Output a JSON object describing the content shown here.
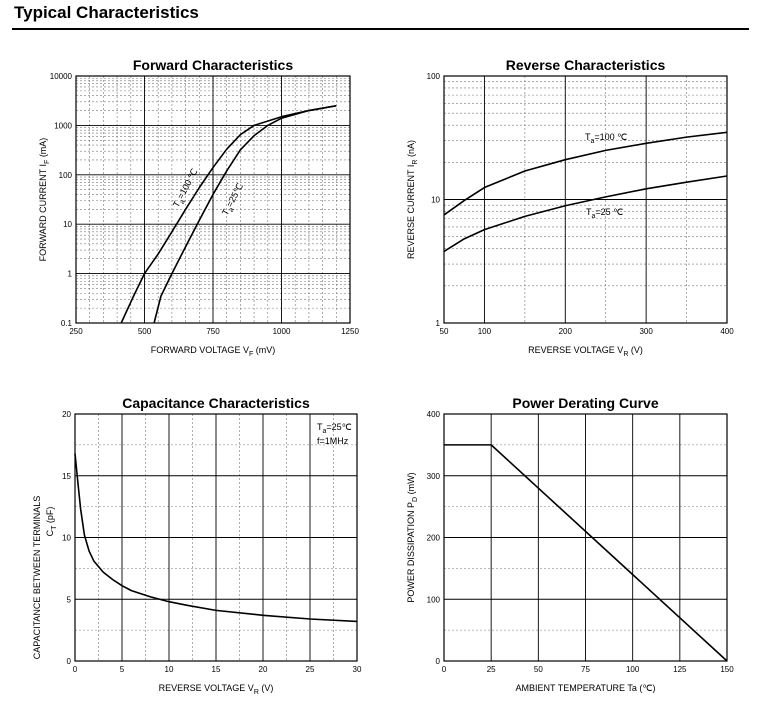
{
  "page": {
    "title": "Typical Characteristics"
  },
  "chart_data": [
    {
      "id": "forward",
      "type": "line",
      "title": "Forward    Characteristics",
      "xlabel": "FORWARD VOLTAGE",
      "xlabel_sub": "F",
      "xlabel_unit": "(mV)",
      "ylabel": "FORWARD CURRENT",
      "ylabel_sub": "F",
      "ylabel_unit": "(mA)",
      "ylabel_sym": "I",
      "xlabel_sym": "V",
      "xscale": "linear",
      "yscale": "log",
      "xlim": [
        250,
        1250
      ],
      "ylim": [
        0.1,
        10000
      ],
      "xticks": [
        250,
        500,
        750,
        1000,
        1250
      ],
      "xtick_labels": [
        "250",
        "500",
        "750",
        "1000",
        "1250"
      ],
      "yticks": [
        0.1,
        1,
        10,
        100,
        1000,
        10000
      ],
      "ytick_labels": [
        "0.1",
        "1",
        "10",
        "100",
        "1000",
        "10000"
      ],
      "series": [
        {
          "name": "Ta=100 ℃",
          "x": [
            415,
            460,
            500,
            550,
            600,
            650,
            700,
            750,
            800,
            850,
            900,
            1000,
            1100,
            1200
          ],
          "y": [
            0.1,
            0.35,
            1,
            2.5,
            7,
            20,
            55,
            140,
            330,
            650,
            1000,
            1500,
            2000,
            2500
          ]
        },
        {
          "name": "Ta=25℃",
          "x": [
            535,
            560,
            600,
            650,
            700,
            750,
            800,
            850,
            900,
            950,
            1000,
            1100,
            1200
          ],
          "y": [
            0.1,
            0.35,
            1,
            3.5,
            12,
            40,
            120,
            320,
            620,
            1000,
            1400,
            2000,
            2500
          ]
        }
      ],
      "annotations": [
        {
          "text": "T",
          "sub": "a",
          "after": "=100 ℃"
        },
        {
          "text": "T",
          "sub": "a",
          "after": "=25℃"
        }
      ],
      "grid": true
    },
    {
      "id": "reverse",
      "type": "line",
      "title": "Reverse    Characteristics",
      "xlabel": "REVERSE VOLTAGE",
      "xlabel_sym": "V",
      "xlabel_sub": "R",
      "xlabel_unit": "(V)",
      "ylabel": "REVERSE CURRENT",
      "ylabel_sym": "I",
      "ylabel_sub": "R",
      "ylabel_unit": "(nA)",
      "xscale": "linear",
      "yscale": "log",
      "xlim": [
        50,
        400
      ],
      "ylim": [
        1,
        100
      ],
      "xticks": [
        50,
        100,
        200,
        300,
        400
      ],
      "xtick_labels": [
        "50",
        "100",
        "200",
        "300",
        "400"
      ],
      "yticks": [
        1,
        10,
        100
      ],
      "ytick_labels": [
        "1",
        "10",
        "100"
      ],
      "series": [
        {
          "name": "Ta=100 ℃",
          "x": [
            50,
            75,
            100,
            150,
            200,
            250,
            300,
            350,
            400
          ],
          "y": [
            7.5,
            9.8,
            12.5,
            17,
            21,
            25,
            28.5,
            32,
            35
          ]
        },
        {
          "name": "Ta=25℃",
          "x": [
            50,
            75,
            100,
            150,
            200,
            250,
            300,
            350,
            400
          ],
          "y": [
            3.8,
            4.8,
            5.7,
            7.3,
            8.9,
            10.5,
            12.2,
            13.8,
            15.5
          ]
        }
      ],
      "annotations": [
        {
          "text": "T",
          "sub": "a",
          "after": "=100 ℃"
        },
        {
          "text": "T",
          "sub": "a",
          "after": "=25 ℃"
        }
      ],
      "grid": true
    },
    {
      "id": "capacitance",
      "type": "line",
      "title": "Capacitance Characteristics",
      "xlabel": "REVERSE VOLTAGE",
      "xlabel_sym": "V",
      "xlabel_sub": "R",
      "xlabel_unit": "(V)",
      "ylabel": "CAPACITANCE BETWEEN TERMINALS",
      "ylabel2_sym": "C",
      "ylabel2_sub": "T",
      "ylabel2_unit": "(pF)",
      "xscale": "linear",
      "yscale": "linear",
      "xlim": [
        0,
        30
      ],
      "ylim": [
        0,
        20
      ],
      "xticks": [
        0,
        5,
        10,
        15,
        20,
        25,
        30
      ],
      "xtick_labels": [
        "0",
        "5",
        "10",
        "15",
        "20",
        "25",
        "30"
      ],
      "yticks": [
        0,
        5,
        10,
        15,
        20
      ],
      "ytick_labels": [
        "0",
        "5",
        "10",
        "15",
        "20"
      ],
      "series": [
        {
          "name": "",
          "x": [
            0,
            0.3,
            0.6,
            1,
            1.5,
            2,
            3,
            4,
            5,
            6,
            8,
            10,
            12,
            15,
            20,
            25,
            30
          ],
          "y": [
            16.8,
            14.5,
            12.3,
            10.2,
            8.9,
            8.1,
            7.2,
            6.6,
            6.1,
            5.7,
            5.2,
            4.8,
            4.5,
            4.1,
            3.7,
            3.4,
            3.2
          ]
        }
      ],
      "annotations": [
        {
          "text": "T",
          "sub": "a",
          "after": "=25℃"
        },
        {
          "text": "f=1MHz"
        }
      ],
      "grid": true
    },
    {
      "id": "derating",
      "type": "line",
      "title": "Power Derating Curve",
      "xlabel": "AMBIENT TEMPERATURE",
      "xlabel_sym": "Ta",
      "xlabel_unit": "(℃)",
      "ylabel": "POWER DISSIPATION",
      "ylabel_sym": "P",
      "ylabel_sub": "D",
      "ylabel_unit": "(mW)",
      "xscale": "linear",
      "yscale": "linear",
      "xlim": [
        0,
        150
      ],
      "ylim": [
        0,
        400
      ],
      "xticks": [
        0,
        25,
        50,
        75,
        100,
        125,
        150
      ],
      "xtick_labels": [
        "0",
        "25",
        "50",
        "75",
        "100",
        "125",
        "150"
      ],
      "yticks": [
        0,
        100,
        200,
        300,
        400
      ],
      "ytick_labels": [
        "0",
        "100",
        "200",
        "300",
        "400"
      ],
      "series": [
        {
          "name": "",
          "x": [
            0,
            25,
            150
          ],
          "y": [
            350,
            350,
            0
          ]
        }
      ],
      "grid": true
    }
  ]
}
